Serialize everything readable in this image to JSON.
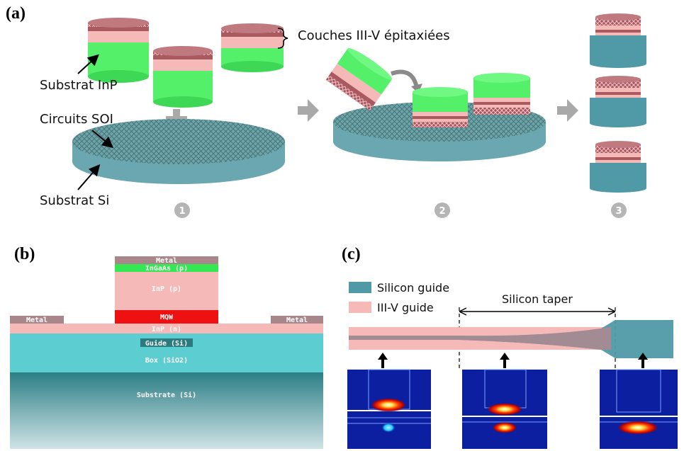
{
  "panel_a": {
    "letter": "(a)",
    "label_epi": "Couches III-V épitaxiées",
    "label_inp": "Substrat InP",
    "label_soi": "Circuits SOI",
    "label_si": "Substrat Si",
    "step1": "1",
    "step2": "2",
    "step3": "3"
  },
  "panel_b": {
    "letter": "(b)",
    "layers": {
      "metal_top": "Metal",
      "ingaas": "InGaAs (p)",
      "inp_p": "InP (p)",
      "mqw": "MQW",
      "inp_n": "InP (n)",
      "metal_left": "Metal",
      "metal_right": "Metal",
      "guide": "Guide (Si)",
      "box": "Box (SiO2)",
      "substrate": "Substrate (Si)"
    }
  },
  "panel_c": {
    "letter": "(c)",
    "legend_silicon": "Silicon guide",
    "legend_iiiv": "III-V guide",
    "taper_label": "Silicon taper"
  },
  "colors": {
    "inp_green": "#55f06a",
    "iiiv_pink": "#f5b9b7",
    "iiiv_dark": "#a85a5e",
    "silicon_teal": "#4f9aa6",
    "wafer_teal": "#6aa7b0",
    "mqw_red": "#ee1111",
    "box_cyan": "#5ccdd0",
    "mode_blue": "#0b1fa0"
  }
}
